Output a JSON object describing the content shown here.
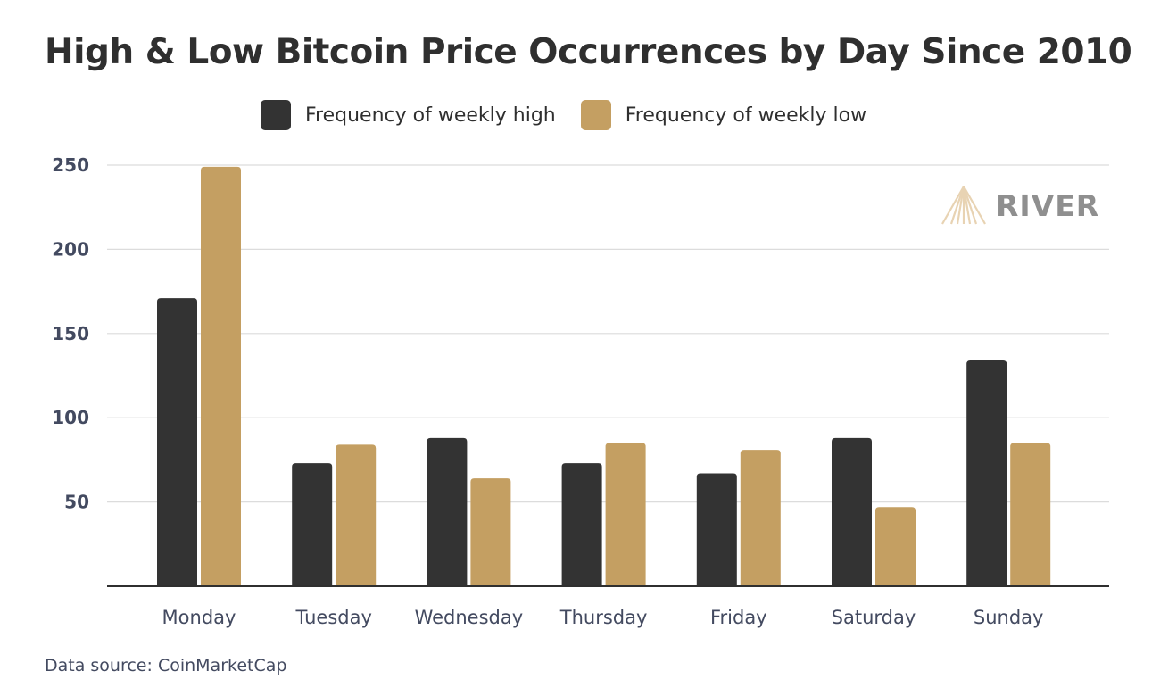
{
  "chart_data": {
    "type": "bar",
    "title": "High & Low Bitcoin Price Occurrences by Day Since 2010",
    "xlabel": "",
    "ylabel": "",
    "categories": [
      "Monday",
      "Tuesday",
      "Wednesday",
      "Thursday",
      "Friday",
      "Saturday",
      "Sunday"
    ],
    "series": [
      {
        "name": "Frequency of weekly high",
        "color": "#333333",
        "values": [
          171,
          73,
          88,
          73,
          67,
          88,
          134
        ]
      },
      {
        "name": "Frequency of weekly low",
        "color": "#c49f62",
        "values": [
          249,
          84,
          64,
          85,
          81,
          47,
          85
        ]
      }
    ],
    "ylim": [
      0,
      250
    ],
    "yticks": [
      50,
      100,
      150,
      200,
      250
    ],
    "grid": true,
    "legend_position": "top-center"
  },
  "source_text": "Data source: CoinMarketCap",
  "logo": {
    "text": "RIVER",
    "mark_color": "#e8d3b3",
    "text_color": "#8f8f8f"
  }
}
